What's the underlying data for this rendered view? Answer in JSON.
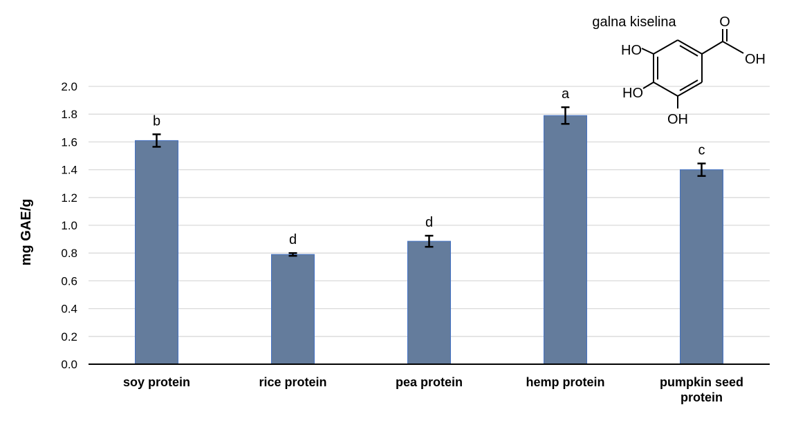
{
  "chart_data": {
    "type": "bar",
    "categories": [
      [
        "soy protein"
      ],
      [
        "rice protein"
      ],
      [
        "pea protein"
      ],
      [
        "hemp protein"
      ],
      [
        "pumpkin seed",
        "protein"
      ]
    ],
    "values": [
      1.61,
      0.79,
      0.885,
      1.79,
      1.4
    ],
    "errors": [
      0.045,
      0.01,
      0.04,
      0.06,
      0.045
    ],
    "significance_letters": [
      "b",
      "d",
      "d",
      "a",
      "c"
    ],
    "ylabel": "mg GAE/g",
    "xlabel": "",
    "ylim": [
      0,
      2.0
    ],
    "yticks": [
      "0.0",
      "0.2",
      "0.4",
      "0.6",
      "0.8",
      "1.0",
      "1.2",
      "1.4",
      "1.6",
      "1.8",
      "2.0"
    ],
    "grid": true,
    "bar_color": "#647c9c",
    "bar_edge_color": "#4472c4"
  },
  "inset": {
    "title": "galna kiselina",
    "groups": {
      "ho_top": "HO",
      "ho_mid": "HO",
      "oh_bottom": "OH",
      "o_carbonyl": "O",
      "oh_acid": "OH"
    }
  }
}
